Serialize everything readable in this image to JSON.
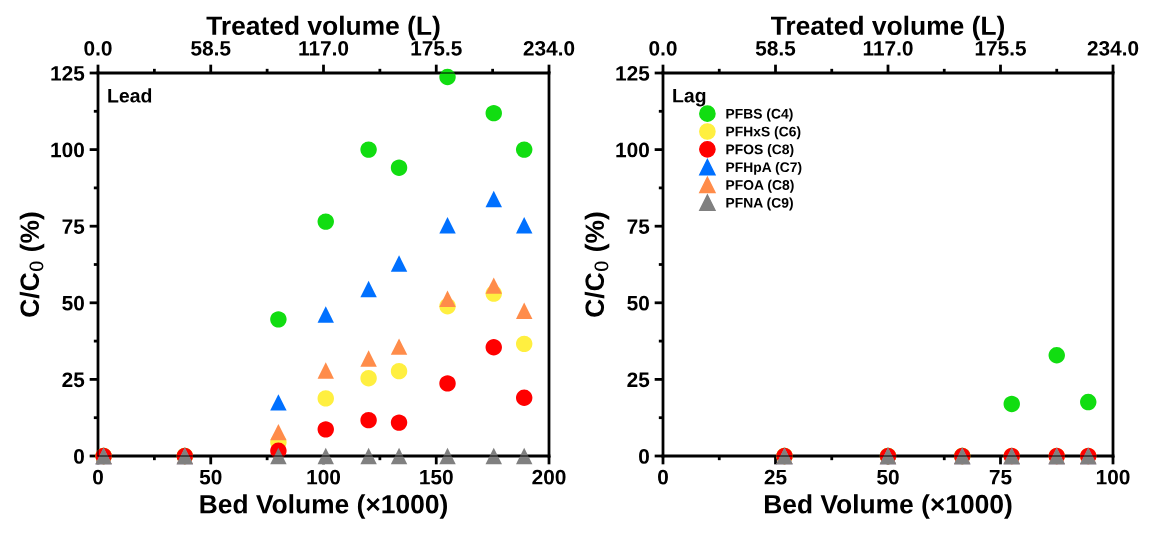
{
  "chart_data": [
    {
      "type": "scatter",
      "xlabel": "Bed Volume (×1000)",
      "ylabel": "C/C$_{0}$ (%)",
      "x2label": "Treated volume (L)",
      "annotations": [
        "Lead"
      ],
      "x": [
        2.5,
        38.5,
        80,
        101,
        120,
        133.5,
        155,
        175.5,
        189
      ],
      "xlim": [
        0,
        200
      ],
      "xticks": [
        0,
        50,
        100,
        150,
        200
      ],
      "x2lim": [
        0,
        234
      ],
      "x2ticks": [
        {
          "value": 0,
          "label": "0.0"
        },
        {
          "value": 58.5,
          "label": "58.5"
        },
        {
          "value": 117,
          "label": "117.0"
        },
        {
          "value": 175.5,
          "label": "175.5"
        },
        {
          "value": 234,
          "label": "234.0"
        }
      ],
      "ylim": [
        0,
        125
      ],
      "yticks": [
        0,
        25,
        50,
        75,
        100,
        125
      ],
      "grid": false,
      "legend": false,
      "series": [
        {
          "color": "#11dd11",
          "marker": "circle",
          "values": [
            0,
            0,
            44.6,
            76.5,
            100,
            94.1,
            123.7,
            111.9,
            100
          ]
        },
        {
          "color": "#ffef40",
          "marker": "circle",
          "values": [
            0,
            0,
            4.5,
            18.8,
            25.4,
            27.7,
            48.9,
            53,
            36.6
          ]
        },
        {
          "color": "#ff0000",
          "marker": "circle",
          "values": [
            0,
            0,
            1.7,
            8.7,
            11.7,
            10.9,
            23.7,
            35.5,
            19
          ]
        },
        {
          "color": "#0070ff",
          "marker": "triangle",
          "values": [
            0,
            0,
            17.5,
            46.2,
            54.5,
            62.8,
            75.3,
            83.9,
            75.3
          ]
        },
        {
          "color": "#ff8c4a",
          "marker": "triangle",
          "values": [
            0,
            0,
            7.8,
            27.9,
            31.8,
            35.7,
            51.3,
            55.6,
            47.4
          ]
        },
        {
          "color": "#808080",
          "marker": "triangle",
          "values": [
            0,
            0,
            0,
            0,
            0,
            0,
            0,
            0,
            0
          ]
        }
      ]
    },
    {
      "type": "scatter",
      "xlabel": "Bed Volume (×1000)",
      "ylabel": "C/C$_{0}$ (%)",
      "x2label": "Treated volume (L)",
      "annotations": [
        "Lag"
      ],
      "x": [
        27,
        50,
        66.5,
        77.5,
        87.5,
        94.5
      ],
      "xlim": [
        0,
        100
      ],
      "xticks": [
        0,
        25,
        50,
        75,
        100
      ],
      "x2lim": [
        0,
        234
      ],
      "x2ticks": [
        {
          "value": 0,
          "label": "0.0"
        },
        {
          "value": 58.5,
          "label": "58.5"
        },
        {
          "value": 117,
          "label": "117.0"
        },
        {
          "value": 175.5,
          "label": "175.5"
        },
        {
          "value": 234,
          "label": "234.0"
        }
      ],
      "ylim": [
        0,
        125
      ],
      "yticks": [
        0,
        25,
        50,
        75,
        100,
        125
      ],
      "grid": false,
      "legend": "upper left",
      "series": [
        {
          "name": "PFBS (C4)",
          "color": "#11dd11",
          "marker": "circle",
          "values": [
            0,
            0,
            0,
            17,
            32.9,
            17.6
          ]
        },
        {
          "name": "PFHxS (C6)",
          "color": "#ffef40",
          "marker": "circle",
          "values": [
            0,
            0,
            0,
            0,
            0,
            0
          ]
        },
        {
          "name": "PFOS (C8)",
          "color": "#ff0000",
          "marker": "circle",
          "values": [
            0,
            0,
            0,
            0,
            0,
            0
          ]
        },
        {
          "name": "PFHpA (C7)",
          "color": "#0070ff",
          "marker": "triangle",
          "values": [
            0,
            0,
            0,
            0,
            0,
            0
          ]
        },
        {
          "name": "PFOA (C8)",
          "color": "#ff8c4a",
          "marker": "triangle",
          "values": [
            0,
            0,
            0,
            0,
            0,
            0
          ]
        },
        {
          "name": "PFNA (C9)",
          "color": "#808080",
          "marker": "triangle",
          "values": [
            0,
            0,
            0,
            0,
            0,
            0
          ]
        }
      ]
    }
  ]
}
